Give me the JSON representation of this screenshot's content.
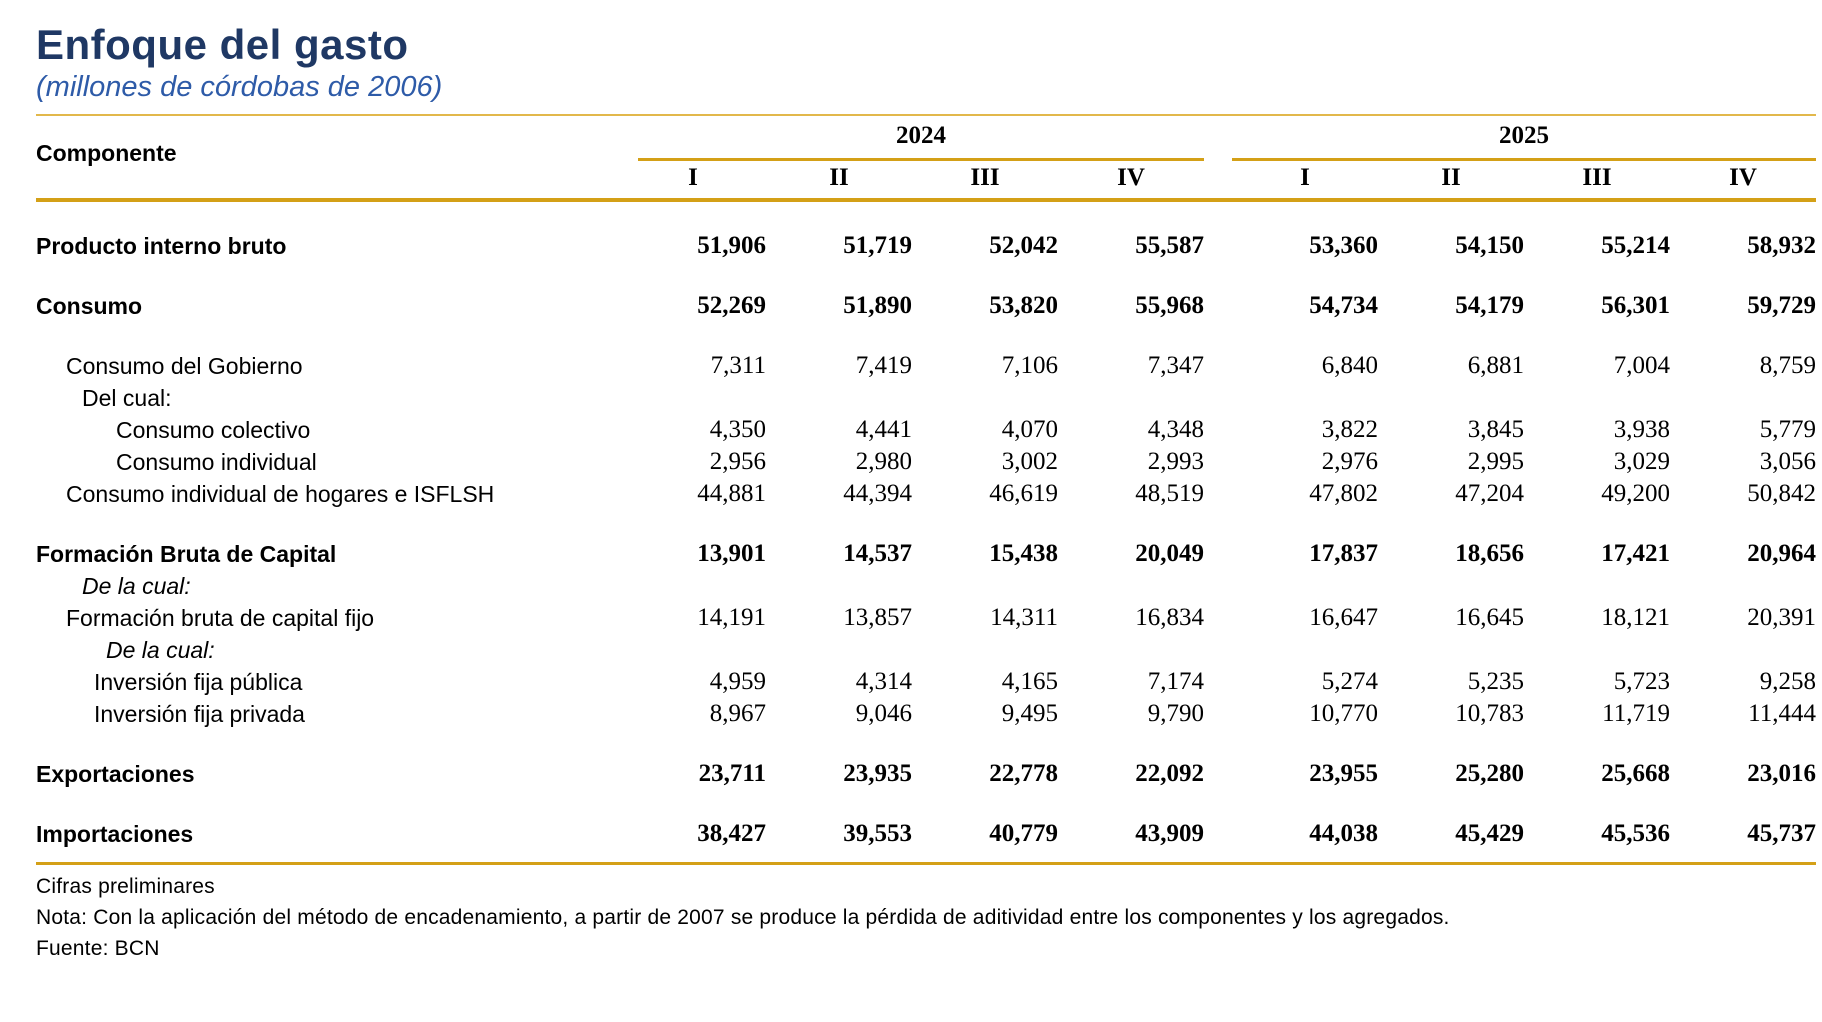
{
  "header": {
    "title": "Enfoque del gasto",
    "subtitle": "(millones de córdobas de 2006)",
    "component_label": "Componente",
    "year_groups": [
      {
        "year": "2024",
        "quarters": [
          "I",
          "II",
          "III",
          "IV"
        ]
      },
      {
        "year": "2025",
        "quarters": [
          "I",
          "II",
          "III",
          "IV"
        ]
      }
    ]
  },
  "chart_data": {
    "type": "table",
    "title": "Enfoque del gasto",
    "subtitle": "(millones de córdobas de 2006)",
    "columns": [
      "2024-I",
      "2024-II",
      "2024-III",
      "2024-IV",
      "2025-I",
      "2025-II",
      "2025-III",
      "2025-IV"
    ]
  },
  "rows": [
    {
      "label": "Producto interno bruto",
      "indent": 0,
      "bold": true,
      "italic": false,
      "section_start": true,
      "values": [
        "51,906",
        "51,719",
        "52,042",
        "55,587",
        "53,360",
        "54,150",
        "55,214",
        "58,932"
      ]
    },
    {
      "label": "Consumo",
      "indent": 0,
      "bold": true,
      "italic": false,
      "section_start": true,
      "values": [
        "52,269",
        "51,890",
        "53,820",
        "55,968",
        "54,734",
        "54,179",
        "56,301",
        "59,729"
      ]
    },
    {
      "label": "Consumo del Gobierno",
      "indent": 1,
      "bold": false,
      "italic": false,
      "section_start": true,
      "values": [
        "7,311",
        "7,419",
        "7,106",
        "7,347",
        "6,840",
        "6,881",
        "7,004",
        "8,759"
      ]
    },
    {
      "label": "Del cual:",
      "indent": 2,
      "bold": false,
      "italic": false,
      "section_start": false,
      "values": []
    },
    {
      "label": "Consumo colectivo",
      "indent": 3,
      "bold": false,
      "italic": false,
      "section_start": false,
      "values": [
        "4,350",
        "4,441",
        "4,070",
        "4,348",
        "3,822",
        "3,845",
        "3,938",
        "5,779"
      ]
    },
    {
      "label": "Consumo individual",
      "indent": 3,
      "bold": false,
      "italic": false,
      "section_start": false,
      "values": [
        "2,956",
        "2,980",
        "3,002",
        "2,993",
        "2,976",
        "2,995",
        "3,029",
        "3,056"
      ]
    },
    {
      "label": "Consumo individual de hogares e ISFLSH",
      "indent": 1,
      "bold": false,
      "italic": false,
      "section_start": false,
      "values": [
        "44,881",
        "44,394",
        "46,619",
        "48,519",
        "47,802",
        "47,204",
        "49,200",
        "50,842"
      ]
    },
    {
      "label": "Formación Bruta de Capital",
      "indent": 0,
      "bold": true,
      "italic": false,
      "section_start": true,
      "values": [
        "13,901",
        "14,537",
        "15,438",
        "20,049",
        "17,837",
        "18,656",
        "17,421",
        "20,964"
      ]
    },
    {
      "label": "De la cual:",
      "indent": 2,
      "bold": false,
      "italic": true,
      "section_start": false,
      "values": []
    },
    {
      "label": "Formación bruta de capital fijo",
      "indent": 1,
      "bold": false,
      "italic": false,
      "section_start": false,
      "values": [
        "14,191",
        "13,857",
        "14,311",
        "16,834",
        "16,647",
        "16,645",
        "18,121",
        "20,391"
      ]
    },
    {
      "label": "De la cual:",
      "indent": 5,
      "bold": false,
      "italic": true,
      "section_start": false,
      "values": []
    },
    {
      "label": "Inversión fija pública",
      "indent": 4,
      "bold": false,
      "italic": false,
      "section_start": false,
      "values": [
        "4,959",
        "4,314",
        "4,165",
        "7,174",
        "5,274",
        "5,235",
        "5,723",
        "9,258"
      ]
    },
    {
      "label": "Inversión fija privada",
      "indent": 4,
      "bold": false,
      "italic": false,
      "section_start": false,
      "values": [
        "8,967",
        "9,046",
        "9,495",
        "9,790",
        "10,770",
        "10,783",
        "11,719",
        "11,444"
      ]
    },
    {
      "label": "Exportaciones",
      "indent": 0,
      "bold": true,
      "italic": false,
      "section_start": true,
      "values": [
        "23,711",
        "23,935",
        "22,778",
        "22,092",
        "23,955",
        "25,280",
        "25,668",
        "23,016"
      ]
    },
    {
      "label": "Importaciones",
      "indent": 0,
      "bold": true,
      "italic": false,
      "section_start": true,
      "values": [
        "38,427",
        "39,553",
        "40,779",
        "43,909",
        "44,038",
        "45,429",
        "45,536",
        "45,737"
      ]
    }
  ],
  "footer": {
    "line1": "Cifras preliminares",
    "line2": "Nota: Con la aplicación del método de encadenamiento, a partir de 2007 se produce la pérdida de aditividad entre los componentes y los agregados.",
    "line3": "Fuente: BCN"
  },
  "colors": {
    "title_navy": "#1F3864",
    "subtitle_blue": "#2E5BA8",
    "accent_gold": "#D4A017"
  }
}
